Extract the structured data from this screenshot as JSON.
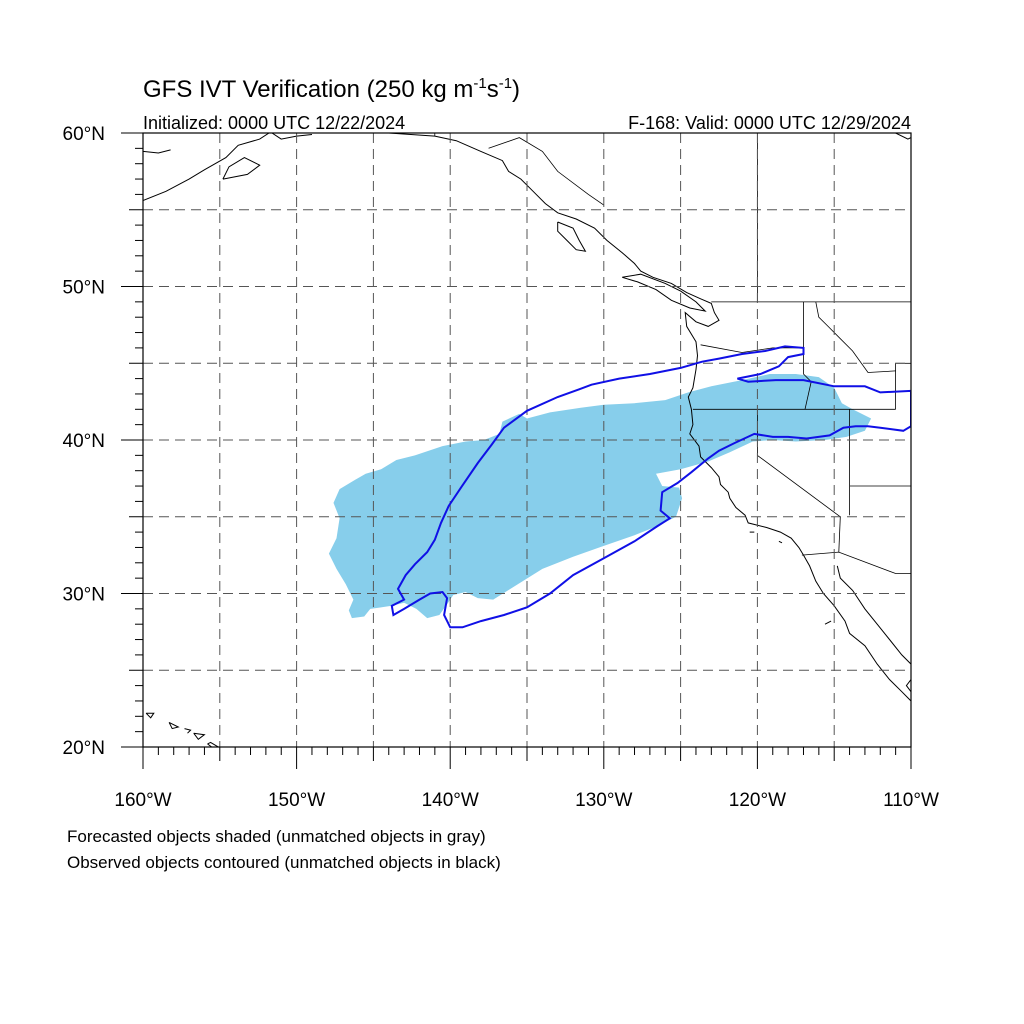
{
  "title_main": "GFS IVT Verification (250 kg m",
  "title_sup1": "-1",
  "title_mid": "s",
  "title_sup2": "-1",
  "title_end": ")",
  "initialized": "Initialized: 0000 UTC 12/22/2024",
  "valid": "F-168: Valid: 0000 UTC 12/29/2024",
  "lat_labels": [
    {
      "value": 60,
      "text": "60°N"
    },
    {
      "value": 50,
      "text": "50°N"
    },
    {
      "value": 40,
      "text": "40°N"
    },
    {
      "value": 30,
      "text": "30°N"
    },
    {
      "value": 20,
      "text": "20°N"
    }
  ],
  "lon_labels": [
    {
      "value": -160,
      "text": "160°W"
    },
    {
      "value": -150,
      "text": "150°W"
    },
    {
      "value": -140,
      "text": "140°W"
    },
    {
      "value": -130,
      "text": "130°W"
    },
    {
      "value": -120,
      "text": "120°W"
    },
    {
      "value": -110,
      "text": "110°W"
    }
  ],
  "caption_forecast": "Forecasted objects shaded (unmatched objects in gray)",
  "caption_observed": "Observed objects contoured (unmatched objects in black)",
  "map": {
    "lon_range": [
      -160,
      -110
    ],
    "lat_range": [
      20,
      60
    ],
    "grid_lon_step": 5,
    "grid_lat_step": 5,
    "forecast_color": "#87ceeb",
    "observed_color": "#1010e6",
    "forecast_object": [
      [
        -146.4,
        28.4
      ],
      [
        -145.6,
        28.5
      ],
      [
        -145.2,
        29.0
      ],
      [
        -143.8,
        29.2
      ],
      [
        -143.0,
        29.4
      ],
      [
        -142.2,
        29.0
      ],
      [
        -141.5,
        28.4
      ],
      [
        -140.7,
        28.6
      ],
      [
        -140.2,
        29.3
      ],
      [
        -139.8,
        29.9
      ],
      [
        -139.0,
        30.1
      ],
      [
        -138.2,
        29.7
      ],
      [
        -137.2,
        29.6
      ],
      [
        -135.6,
        30.6
      ],
      [
        -134.0,
        31.6
      ],
      [
        -132.0,
        32.4
      ],
      [
        -130.0,
        33.1
      ],
      [
        -128.0,
        33.8
      ],
      [
        -126.5,
        34.4
      ],
      [
        -125.3,
        35.0
      ],
      [
        -124.9,
        36.2
      ],
      [
        -125.1,
        36.9
      ],
      [
        -126.2,
        37.0
      ],
      [
        -126.6,
        37.8
      ],
      [
        -125.0,
        38.1
      ],
      [
        -123.2,
        38.6
      ],
      [
        -121.8,
        39.2
      ],
      [
        -120.3,
        39.9
      ],
      [
        -119.0,
        40.0
      ],
      [
        -117.5,
        39.9
      ],
      [
        -115.6,
        40.0
      ],
      [
        -114.2,
        40.2
      ],
      [
        -113.0,
        40.6
      ],
      [
        -112.6,
        41.4
      ],
      [
        -113.8,
        42.0
      ],
      [
        -114.5,
        42.4
      ],
      [
        -115.0,
        43.4
      ],
      [
        -116.0,
        44.1
      ],
      [
        -117.5,
        44.3
      ],
      [
        -119.2,
        44.3
      ],
      [
        -121.0,
        43.9
      ],
      [
        -123.0,
        43.5
      ],
      [
        -124.5,
        43.1
      ],
      [
        -126.0,
        42.6
      ],
      [
        -128.0,
        42.4
      ],
      [
        -130.0,
        42.3
      ],
      [
        -131.5,
        42.1
      ],
      [
        -133.5,
        41.8
      ],
      [
        -135.0,
        41.4
      ],
      [
        -135.5,
        41.7
      ],
      [
        -136.6,
        41.2
      ],
      [
        -136.8,
        40.4
      ],
      [
        -137.8,
        40.0
      ],
      [
        -139.0,
        39.9
      ],
      [
        -140.5,
        39.6
      ],
      [
        -142.3,
        39.0
      ],
      [
        -143.5,
        38.7
      ],
      [
        -144.5,
        38.1
      ],
      [
        -145.5,
        37.8
      ],
      [
        -146.2,
        37.4
      ],
      [
        -147.2,
        36.8
      ],
      [
        -147.6,
        35.9
      ],
      [
        -147.2,
        34.9
      ],
      [
        -147.4,
        33.6
      ],
      [
        -147.9,
        32.6
      ],
      [
        -147.4,
        31.6
      ],
      [
        -146.8,
        30.6
      ],
      [
        -146.3,
        29.6
      ],
      [
        -146.6,
        28.9
      ]
    ],
    "observed_object": [
      [
        -143.7,
        28.6
      ],
      [
        -143.0,
        29.0
      ],
      [
        -142.0,
        29.6
      ],
      [
        -141.3,
        30.0
      ],
      [
        -140.5,
        30.1
      ],
      [
        -140.2,
        29.7
      ],
      [
        -140.4,
        28.6
      ],
      [
        -140.0,
        27.8
      ],
      [
        -139.2,
        27.8
      ],
      [
        -138.0,
        28.2
      ],
      [
        -136.5,
        28.6
      ],
      [
        -135.0,
        29.1
      ],
      [
        -133.5,
        30.0
      ],
      [
        -132.0,
        31.2
      ],
      [
        -130.0,
        32.3
      ],
      [
        -128.0,
        33.4
      ],
      [
        -126.5,
        34.4
      ],
      [
        -125.7,
        34.9
      ],
      [
        -126.3,
        35.4
      ],
      [
        -126.2,
        36.6
      ],
      [
        -125.2,
        37.2
      ],
      [
        -124.3,
        37.9
      ],
      [
        -123.2,
        38.8
      ],
      [
        -122.5,
        39.3
      ],
      [
        -121.5,
        39.8
      ],
      [
        -120.2,
        40.4
      ],
      [
        -119.0,
        40.2
      ],
      [
        -118.0,
        40.2
      ],
      [
        -116.8,
        40.1
      ],
      [
        -115.3,
        40.3
      ],
      [
        -114.4,
        40.8
      ],
      [
        -113.6,
        40.9
      ],
      [
        -112.8,
        40.9
      ],
      [
        -112.0,
        40.8
      ],
      [
        -110.5,
        40.6
      ],
      [
        -110.0,
        40.9
      ],
      [
        -110.0,
        43.2
      ],
      [
        -112.0,
        43.1
      ],
      [
        -113.0,
        43.5
      ],
      [
        -115.0,
        43.5
      ],
      [
        -117.0,
        43.9
      ],
      [
        -118.8,
        43.9
      ],
      [
        -120.6,
        43.8
      ],
      [
        -121.3,
        44.0
      ],
      [
        -119.8,
        44.3
      ],
      [
        -118.6,
        44.8
      ],
      [
        -118.0,
        45.4
      ],
      [
        -117.0,
        45.6
      ],
      [
        -117.0,
        46.0
      ],
      [
        -118.2,
        46.1
      ],
      [
        -119.5,
        45.8
      ],
      [
        -121.0,
        45.6
      ],
      [
        -122.5,
        45.3
      ],
      [
        -123.6,
        45.1
      ],
      [
        -125.0,
        44.7
      ],
      [
        -127.0,
        44.3
      ],
      [
        -129.0,
        44.0
      ],
      [
        -130.8,
        43.6
      ],
      [
        -131.6,
        43.3
      ],
      [
        -133.0,
        42.8
      ],
      [
        -135.0,
        41.9
      ],
      [
        -136.5,
        40.8
      ],
      [
        -137.3,
        39.7
      ],
      [
        -138.2,
        38.5
      ],
      [
        -139.3,
        36.9
      ],
      [
        -140.1,
        35.7
      ],
      [
        -140.6,
        34.6
      ],
      [
        -141.0,
        33.5
      ],
      [
        -141.5,
        32.7
      ],
      [
        -142.3,
        31.9
      ],
      [
        -142.9,
        31.2
      ],
      [
        -143.4,
        30.3
      ],
      [
        -143.0,
        29.6
      ],
      [
        -143.8,
        29.2
      ]
    ],
    "coastlines": [
      [
        [
          -160.0,
          55.6
        ],
        [
          -158.5,
          56.2
        ],
        [
          -157.0,
          57.0
        ],
        [
          -156.0,
          57.6
        ],
        [
          -154.6,
          58.4
        ],
        [
          -153.8,
          59.2
        ],
        [
          -152.4,
          59.6
        ],
        [
          -151.8,
          60.0
        ]
      ],
      [
        [
          -160.0,
          58.8
        ],
        [
          -159.0,
          58.7
        ],
        [
          -158.2,
          58.9
        ]
      ],
      [
        [
          -154.8,
          57.0
        ],
        [
          -153.2,
          57.3
        ],
        [
          -152.4,
          57.9
        ],
        [
          -153.4,
          58.4
        ],
        [
          -154.4,
          57.8
        ],
        [
          -154.8,
          57.0
        ]
      ],
      [
        [
          -151.6,
          60.0
        ],
        [
          -151.0,
          59.6
        ],
        [
          -150.0,
          59.8
        ],
        [
          -149.0,
          59.9
        ]
      ],
      [
        [
          -146.0,
          60.0
        ],
        [
          -144.0,
          60.0
        ],
        [
          -141.0,
          59.8
        ],
        [
          -139.6,
          59.5
        ],
        [
          -138.0,
          58.8
        ],
        [
          -136.6,
          58.2
        ],
        [
          -136.2,
          57.5
        ],
        [
          -135.4,
          57.0
        ],
        [
          -134.6,
          56.2
        ],
        [
          -133.8,
          55.4
        ],
        [
          -133.0,
          54.8
        ],
        [
          -131.8,
          54.4
        ],
        [
          -130.6,
          53.8
        ],
        [
          -129.8,
          53.0
        ],
        [
          -128.8,
          52.2
        ],
        [
          -128.0,
          51.5
        ],
        [
          -127.6,
          51.0
        ],
        [
          -126.8,
          50.6
        ],
        [
          -125.6,
          50.2
        ],
        [
          -124.6,
          49.6
        ],
        [
          -123.7,
          49.2
        ],
        [
          -123.0,
          48.9
        ],
        [
          -122.8,
          48.3
        ],
        [
          -122.5,
          47.8
        ],
        [
          -123.2,
          47.4
        ],
        [
          -124.0,
          47.7
        ],
        [
          -124.7,
          48.3
        ],
        [
          -124.6,
          47.4
        ],
        [
          -124.0,
          46.4
        ],
        [
          -123.9,
          45.5
        ],
        [
          -124.0,
          44.6
        ],
        [
          -124.2,
          43.4
        ],
        [
          -124.5,
          42.8
        ],
        [
          -124.3,
          42.0
        ],
        [
          -124.2,
          41.0
        ],
        [
          -124.4,
          40.4
        ],
        [
          -123.8,
          39.6
        ],
        [
          -123.7,
          38.9
        ],
        [
          -123.0,
          38.2
        ],
        [
          -122.5,
          37.6
        ],
        [
          -122.4,
          37.1
        ],
        [
          -121.9,
          36.6
        ],
        [
          -121.8,
          36.2
        ],
        [
          -121.4,
          35.6
        ],
        [
          -120.8,
          35.1
        ],
        [
          -120.6,
          34.6
        ],
        [
          -119.4,
          34.3
        ],
        [
          -118.5,
          34.0
        ],
        [
          -117.8,
          33.6
        ],
        [
          -117.3,
          33.0
        ],
        [
          -117.0,
          32.5
        ],
        [
          -116.6,
          31.8
        ],
        [
          -116.2,
          30.8
        ],
        [
          -115.7,
          30.0
        ],
        [
          -115.0,
          29.2
        ],
        [
          -114.3,
          28.2
        ],
        [
          -114.0,
          27.4
        ],
        [
          -113.0,
          26.6
        ],
        [
          -112.2,
          25.4
        ],
        [
          -111.4,
          24.4
        ],
        [
          -110.6,
          23.6
        ],
        [
          -110.0,
          23.0
        ]
      ],
      [
        [
          -114.8,
          31.8
        ],
        [
          -114.6,
          31.0
        ],
        [
          -113.8,
          30.2
        ],
        [
          -113.0,
          29.0
        ],
        [
          -112.2,
          28.0
        ],
        [
          -111.4,
          27.0
        ],
        [
          -110.6,
          26.0
        ],
        [
          -110.0,
          25.4
        ]
      ],
      [
        [
          -110.0,
          24.4
        ],
        [
          -110.3,
          24.0
        ],
        [
          -110.0,
          23.6
        ]
      ],
      [
        [
          -128.8,
          50.6
        ],
        [
          -127.8,
          50.3
        ],
        [
          -126.6,
          49.8
        ],
        [
          -125.6,
          49.1
        ],
        [
          -124.4,
          48.6
        ],
        [
          -123.4,
          48.4
        ],
        [
          -124.0,
          49.0
        ],
        [
          -125.0,
          49.7
        ],
        [
          -126.0,
          50.2
        ],
        [
          -127.6,
          50.8
        ],
        [
          -128.8,
          50.6
        ]
      ],
      [
        [
          -133.0,
          54.2
        ],
        [
          -132.0,
          53.8
        ],
        [
          -131.6,
          53.0
        ],
        [
          -131.2,
          52.3
        ],
        [
          -131.8,
          52.4
        ],
        [
          -132.4,
          53.0
        ],
        [
          -133.0,
          53.6
        ],
        [
          -133.0,
          54.2
        ]
      ],
      [
        [
          -155.8,
          20.2
        ],
        [
          -155.0,
          19.6
        ],
        [
          -155.1,
          20.0
        ],
        [
          -155.6,
          20.3
        ],
        [
          -155.8,
          20.2
        ]
      ],
      [
        [
          -156.7,
          20.9
        ],
        [
          -156.0,
          20.8
        ],
        [
          -156.4,
          20.5
        ],
        [
          -156.7,
          20.9
        ]
      ],
      [
        [
          -157.3,
          21.2
        ],
        [
          -156.9,
          21.1
        ],
        [
          -157.1,
          20.9
        ]
      ],
      [
        [
          -158.3,
          21.6
        ],
        [
          -157.7,
          21.3
        ],
        [
          -158.1,
          21.2
        ],
        [
          -158.3,
          21.6
        ]
      ],
      [
        [
          -159.8,
          22.2
        ],
        [
          -159.3,
          22.2
        ],
        [
          -159.5,
          21.9
        ],
        [
          -159.8,
          22.2
        ]
      ],
      [
        [
          -111.0,
          60.0
        ],
        [
          -110.2,
          59.6
        ],
        [
          -110.0,
          59.7
        ]
      ],
      [
        [
          -120.5,
          34.0
        ],
        [
          -120.2,
          34.0
        ]
      ],
      [
        [
          -118.6,
          33.4
        ],
        [
          -118.4,
          33.3
        ]
      ],
      [
        [
          -115.6,
          28.0
        ],
        [
          -115.2,
          28.2
        ]
      ]
    ],
    "borders": [
      [
        [
          -141.0,
          60.0
        ],
        [
          -141.0,
          59.8
        ]
      ],
      [
        [
          -137.5,
          59.0
        ],
        [
          -135.5,
          59.7
        ],
        [
          -134.0,
          58.8
        ],
        [
          -133.0,
          57.5
        ],
        [
          -131.0,
          56.0
        ],
        [
          -130.0,
          55.3
        ]
      ],
      [
        [
          -123.0,
          49.0
        ],
        [
          -110.0,
          49.0
        ]
      ],
      [
        [
          -120.0,
          60.0
        ],
        [
          -120.0,
          49.0
        ]
      ],
      [
        [
          -124.2,
          42.0
        ],
        [
          -111.0,
          42.0
        ]
      ],
      [
        [
          -117.0,
          49.0
        ],
        [
          -117.0,
          44.3
        ],
        [
          -116.5,
          43.8
        ],
        [
          -116.9,
          42.0
        ]
      ],
      [
        [
          -111.0,
          45.0
        ],
        [
          -111.0,
          42.0
        ]
      ],
      [
        [
          -110.0,
          45.0
        ],
        [
          -111.0,
          45.0
        ]
      ],
      [
        [
          -114.0,
          42.0
        ],
        [
          -114.0,
          35.1
        ]
      ],
      [
        [
          -120.0,
          42.0
        ],
        [
          -120.0,
          39.0
        ],
        [
          -114.6,
          35.0
        ]
      ],
      [
        [
          -123.7,
          46.2
        ],
        [
          -121.0,
          45.7
        ],
        [
          -119.0,
          46.0
        ],
        [
          -117.0,
          46.0
        ]
      ],
      [
        [
          -114.0,
          37.0
        ],
        [
          -110.0,
          37.0
        ]
      ],
      [
        [
          -114.6,
          35.0
        ],
        [
          -114.7,
          32.7
        ]
      ],
      [
        [
          -117.1,
          32.5
        ],
        [
          -114.7,
          32.7
        ],
        [
          -111.0,
          31.3
        ],
        [
          -110.0,
          31.3
        ]
      ],
      [
        [
          -116.2,
          49.0
        ],
        [
          -116.0,
          48.0
        ],
        [
          -115.4,
          47.4
        ],
        [
          -114.6,
          46.6
        ],
        [
          -113.8,
          45.8
        ],
        [
          -112.8,
          44.4
        ],
        [
          -111.0,
          44.5
        ]
      ]
    ]
  }
}
